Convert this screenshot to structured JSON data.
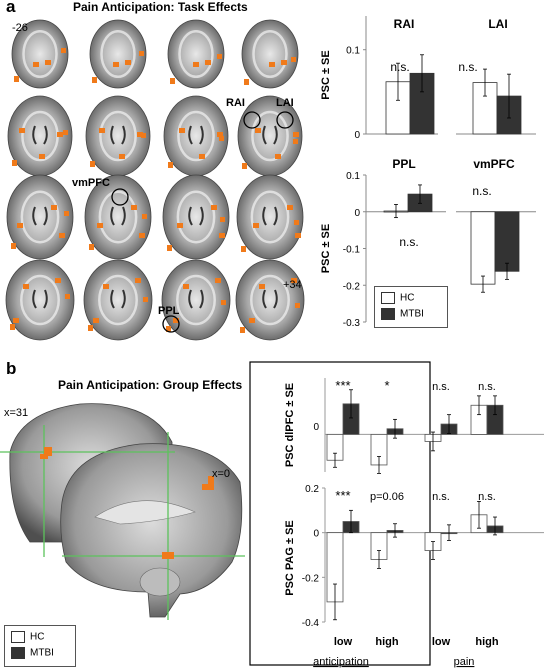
{
  "panel_a": {
    "letter": "a",
    "title": "Pain Anticipation: Task Effects",
    "slice_labels": {
      "top": "-26",
      "bottom": "+34"
    },
    "roi_labels": {
      "rai": "RAI",
      "lai": "LAI",
      "vmpfc": "vmPFC",
      "ppl": "PPL"
    },
    "legend": {
      "hc": "HC",
      "mtbi": "MTBI"
    }
  },
  "panel_b": {
    "letter": "b",
    "title": "Pain Anticipation: Group Effects",
    "slice_labels": {
      "sag1": "x=31",
      "sag2": "x=0"
    },
    "legend": {
      "hc": "HC",
      "mtbi": "MTBI"
    }
  },
  "colors": {
    "hc": "#ffffff",
    "mtbi": "#333333",
    "activation": "#f07a1a",
    "crosshair": "#5cc25c"
  },
  "chart_data": [
    {
      "type": "bar",
      "title": "RAI",
      "ylabel": "PSC ± SE",
      "ylim": [
        0,
        0.14
      ],
      "yticks": [
        "0.1",
        "0"
      ],
      "ytick_vals": [
        0.1,
        0
      ],
      "series": [
        {
          "name": "HC",
          "values": [
            0.062
          ],
          "err": [
            0.022
          ]
        },
        {
          "name": "MTBI",
          "values": [
            0.072
          ],
          "err": [
            0.022
          ]
        }
      ],
      "annotations": [
        "n.s."
      ]
    },
    {
      "type": "bar",
      "title": "LAI",
      "ylim": [
        0,
        0.14
      ],
      "series": [
        {
          "name": "HC",
          "values": [
            0.061
          ],
          "err": [
            0.016
          ]
        },
        {
          "name": "MTBI",
          "values": [
            0.045
          ],
          "err": [
            0.026
          ]
        }
      ],
      "annotations": [
        "n.s."
      ]
    },
    {
      "type": "bar",
      "title": "PPL",
      "ylabel": "PSC ± SE",
      "ylim": [
        -0.3,
        0.1
      ],
      "yticks": [
        "0.1",
        "0",
        "-0.1",
        "-0.2",
        "-0.3"
      ],
      "ytick_vals": [
        0.1,
        0,
        -0.1,
        -0.2,
        -0.3
      ],
      "series": [
        {
          "name": "HC",
          "values": [
            0.002
          ],
          "err": [
            0.018
          ]
        },
        {
          "name": "MTBI",
          "values": [
            0.048
          ],
          "err": [
            0.025
          ]
        }
      ],
      "annotations": [
        "n.s."
      ]
    },
    {
      "type": "bar",
      "title": "vmPFC",
      "ylim": [
        -0.3,
        0.1
      ],
      "series": [
        {
          "name": "HC",
          "values": [
            -0.197
          ],
          "err": [
            0.022
          ]
        },
        {
          "name": "MTBI",
          "values": [
            -0.162
          ],
          "err": [
            0.022
          ]
        }
      ],
      "annotations": [
        "n.s."
      ]
    },
    {
      "type": "bar",
      "title": "",
      "ylabel": "PSC dlPFC ± SE",
      "ylim": [
        -0.08,
        0.12
      ],
      "categories": [
        "low",
        "high",
        "low",
        "high"
      ],
      "series": [
        {
          "name": "HC",
          "values": [
            -0.055,
            -0.065,
            -0.015,
            0.062
          ]
        },
        {
          "name": "MTBI",
          "values": [
            0.065,
            0.012,
            0.022,
            0.062
          ]
        }
      ],
      "errors": {
        "HC": [
          0.015,
          0.018,
          0.02,
          0.02
        ],
        "MTBI": [
          0.03,
          0.02,
          0.02,
          0.02
        ]
      },
      "annotations": [
        "***",
        "*",
        "n.s.",
        "n.s."
      ]
    },
    {
      "type": "bar",
      "title": "",
      "ylabel": "PSC PAG ± SE",
      "ylim": [
        -0.4,
        0.2
      ],
      "yticks": [
        "0.2",
        "0",
        "-0.2",
        "-0.4"
      ],
      "ytick_vals": [
        0.2,
        0,
        -0.2,
        -0.4
      ],
      "categories": [
        "low",
        "high",
        "low",
        "high"
      ],
      "series": [
        {
          "name": "HC",
          "values": [
            -0.31,
            -0.12,
            -0.08,
            0.08
          ]
        },
        {
          "name": "MTBI",
          "values": [
            0.05,
            0.01,
            0.0,
            0.03
          ]
        }
      ],
      "errors": {
        "HC": [
          0.08,
          0.04,
          0.04,
          0.06
        ],
        "MTBI": [
          0.05,
          0.03,
          0.035,
          0.04
        ]
      },
      "annotations": [
        "***",
        "p=0.06",
        "n.s.",
        "n.s."
      ]
    }
  ],
  "group_b": {
    "yticks_top": [
      "0"
    ],
    "category_labels": [
      "low",
      "high",
      "low",
      "high"
    ],
    "group_labels": {
      "anticipation": "anticipation",
      "pain": "pain"
    }
  }
}
